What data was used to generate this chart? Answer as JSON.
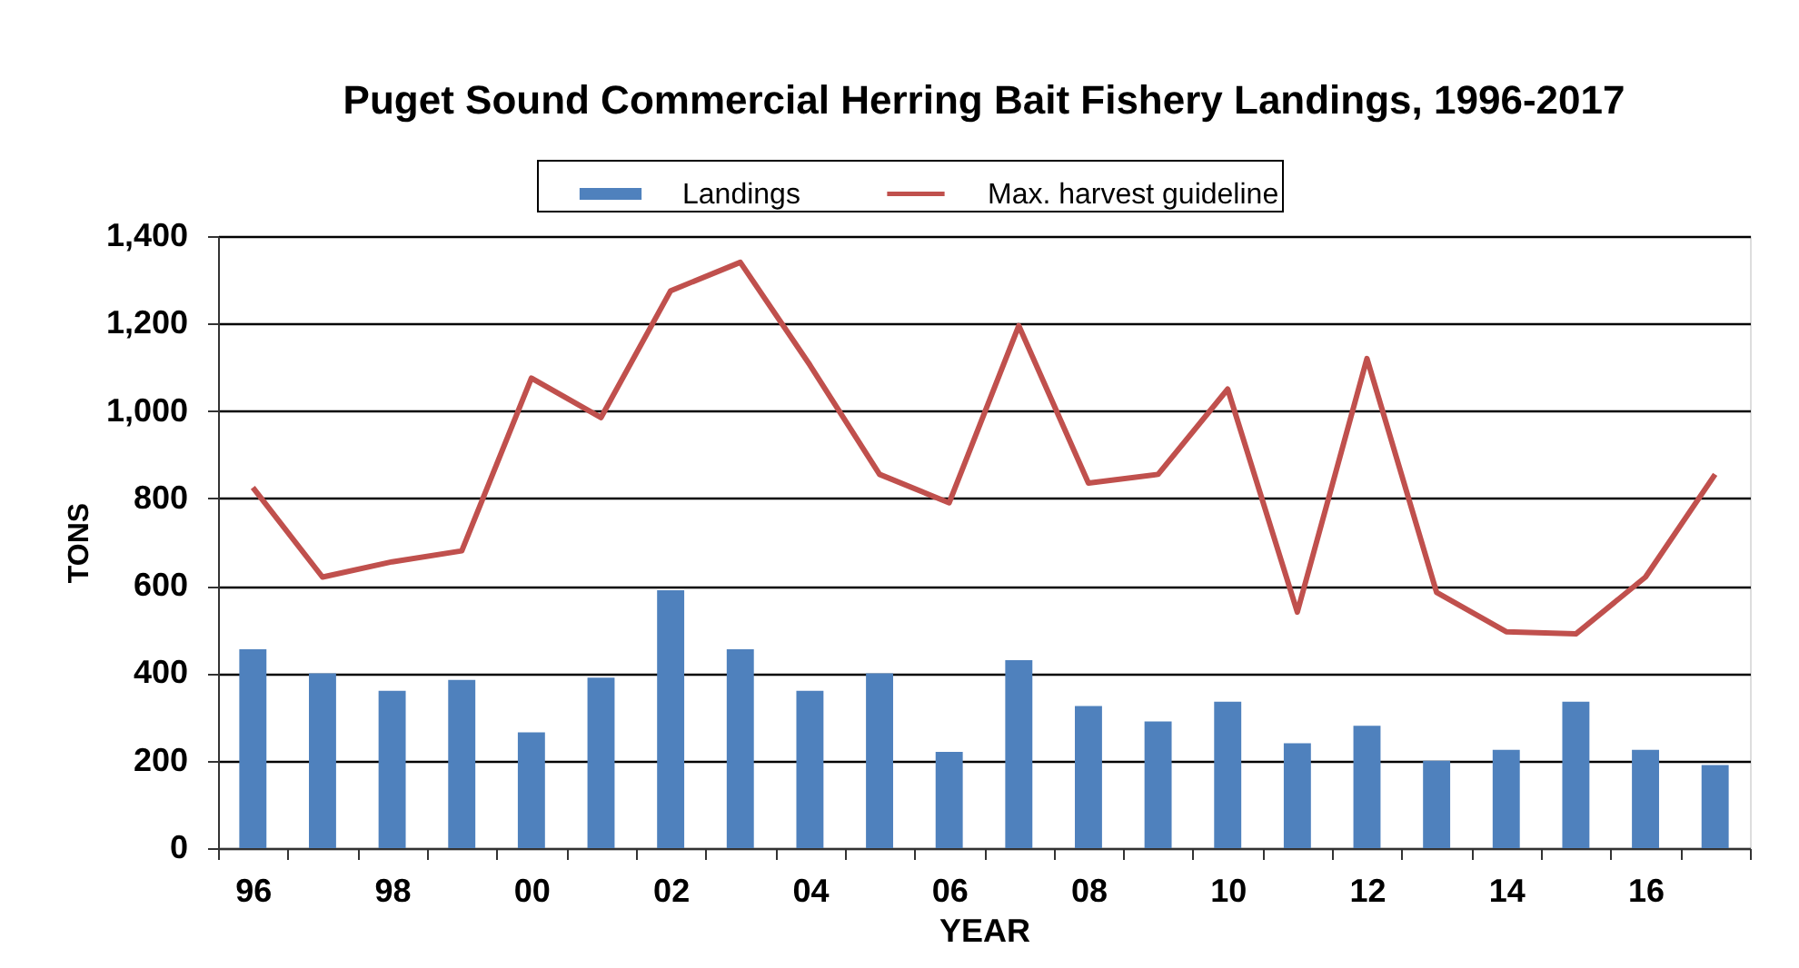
{
  "chart_data": {
    "type": "bar",
    "title": "Puget Sound Commercial Herring Bait Fishery Landings, 1996-2017",
    "xlabel": "YEAR",
    "ylabel": "TONS",
    "categories": [
      "96",
      null,
      "98",
      null,
      "00",
      null,
      "02",
      null,
      "04",
      null,
      "06",
      null,
      "08",
      null,
      "10",
      null,
      "12",
      null,
      "14",
      null,
      "16",
      null
    ],
    "series": [
      {
        "name": "Landings",
        "color": "#4f81bd",
        "values": [
          455,
          400,
          360,
          385,
          265,
          390,
          590,
          455,
          360,
          400,
          220,
          430,
          325,
          290,
          335,
          240,
          280,
          200,
          225,
          335,
          225,
          190
        ]
      },
      {
        "name": "Max. harvest guideline",
        "type": "line",
        "color": "#c0504d",
        "line_style": "solid",
        "values": [
          825,
          620,
          655,
          680,
          1075,
          985,
          1275,
          1340,
          1105,
          855,
          790,
          1195,
          835,
          855,
          1050,
          540,
          1120,
          585,
          495,
          490,
          620,
          855
        ]
      }
    ],
    "ylim": [
      0,
      1400
    ],
    "yticks": [
      0,
      200,
      400,
      600,
      800,
      {
        "value": 1000,
        "label": "1,000"
      },
      {
        "value": 1200,
        "label": "1,200"
      },
      {
        "value": 1400,
        "label": "1,400"
      }
    ],
    "grid": "y",
    "legend": "top"
  }
}
